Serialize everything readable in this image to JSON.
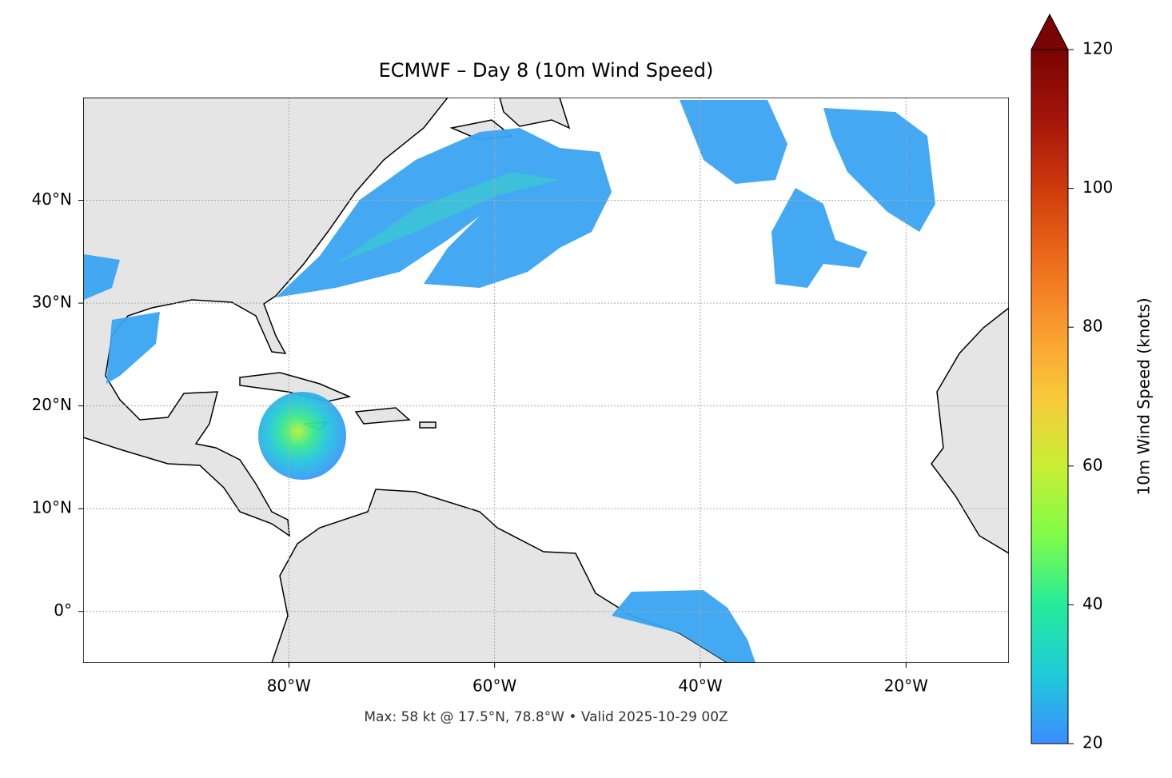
{
  "map": {
    "title": "ECMWF – Day 8 (10m Wind Speed)",
    "xlim": [
      -100,
      -10
    ],
    "ylim": [
      -5,
      50
    ],
    "xticks": [
      {
        "value": -80,
        "label": "80°W"
      },
      {
        "value": -60,
        "label": "60°W"
      },
      {
        "value": -40,
        "label": "40°W"
      },
      {
        "value": -20,
        "label": "20°W"
      }
    ],
    "yticks": [
      {
        "value": 0,
        "label": "0°"
      },
      {
        "value": 10,
        "label": "10°N"
      },
      {
        "value": 20,
        "label": "20°N"
      },
      {
        "value": 30,
        "label": "30°N"
      },
      {
        "value": 40,
        "label": "40°N"
      }
    ],
    "grid": true,
    "caption": "Max: 58 kt @ 17.5°N, 78.8°W • Valid 2025-10-29 00Z"
  },
  "colorbar": {
    "label": "10m Wind Speed (knots)",
    "lim": [
      20,
      120
    ],
    "ticks": [
      20,
      40,
      60,
      80,
      100,
      120
    ]
  }
}
